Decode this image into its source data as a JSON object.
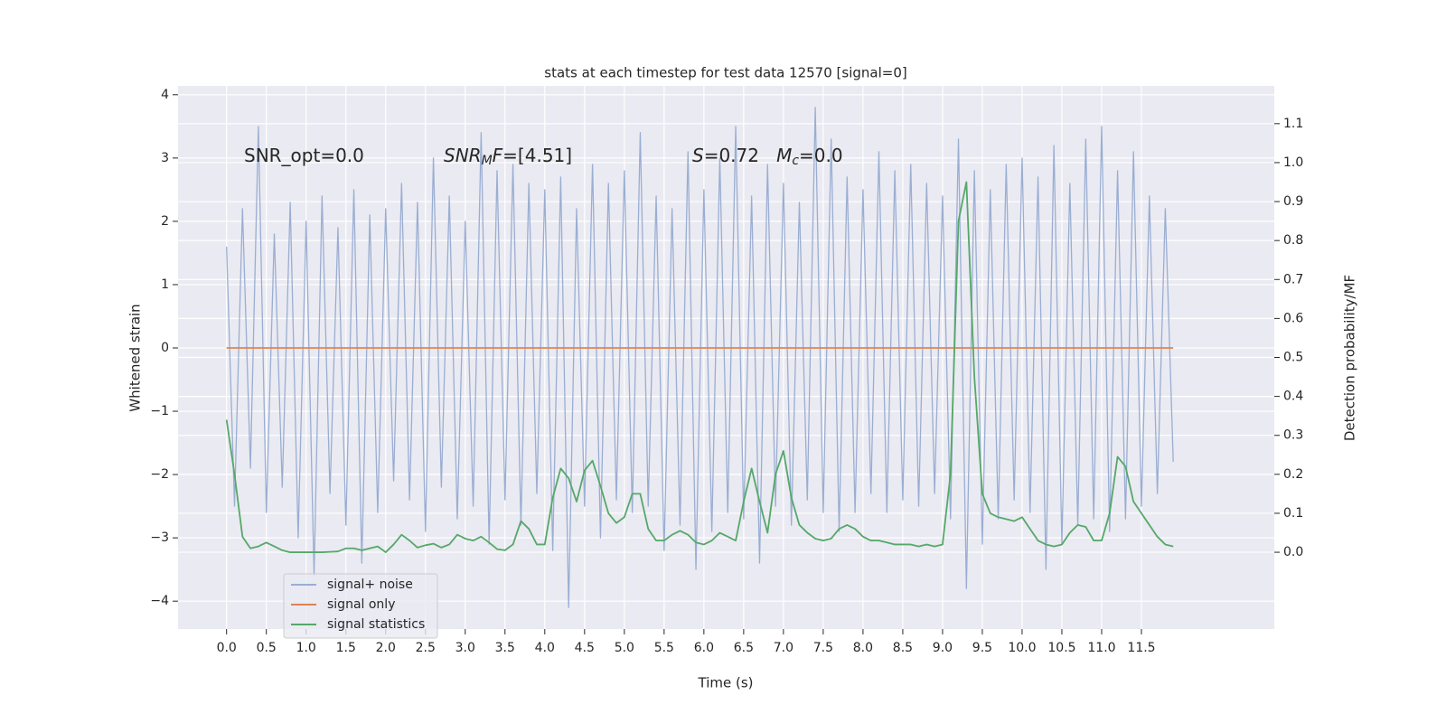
{
  "chart_data": {
    "type": "line",
    "title": "stats at each timestep for test data 12570 [signal=0]",
    "xlabel": "Time (s)",
    "ylabel": "Whitened strain",
    "y2label": "Detection probability/MF",
    "annotations": [
      [
        {
          "text": "SNR_opt=0.0",
          "style": "normal"
        }
      ],
      [
        {
          "text": "SNR",
          "style": "italic"
        },
        {
          "text": "M",
          "style": "sub-italic"
        },
        {
          "text": "F",
          "style": "italic"
        },
        {
          "text": "=[4.51]",
          "style": "normal"
        }
      ],
      [
        {
          "text": "S",
          "style": "italic"
        },
        {
          "text": "=0.72   ",
          "style": "normal"
        },
        {
          "text": "M",
          "style": "italic"
        },
        {
          "text": "c",
          "style": "sub-italic"
        },
        {
          "text": "=0.0",
          "style": "normal"
        }
      ]
    ],
    "x": [
      0,
      0.1,
      0.2,
      0.3,
      0.4,
      0.5,
      0.6,
      0.7,
      0.8,
      0.9,
      1,
      1.1,
      1.2,
      1.3,
      1.4,
      1.5,
      1.6,
      1.7,
      1.8,
      1.9,
      2,
      2.1,
      2.2,
      2.3,
      2.4,
      2.5,
      2.6,
      2.7,
      2.8,
      2.9,
      3,
      3.1,
      3.2,
      3.3,
      3.4,
      3.5,
      3.6,
      3.7,
      3.8,
      3.9,
      4,
      4.1,
      4.2,
      4.3,
      4.4,
      4.5,
      4.6,
      4.7,
      4.8,
      4.9,
      5,
      5.1,
      5.2,
      5.3,
      5.4,
      5.5,
      5.6,
      5.7,
      5.8,
      5.9,
      6,
      6.1,
      6.2,
      6.3,
      6.4,
      6.5,
      6.6,
      6.7,
      6.8,
      6.9,
      7,
      7.1,
      7.2,
      7.3,
      7.4,
      7.5,
      7.6,
      7.7,
      7.8,
      7.9,
      8,
      8.1,
      8.2,
      8.3,
      8.4,
      8.5,
      8.6,
      8.7,
      8.8,
      8.9,
      9,
      9.1,
      9.2,
      9.3,
      9.4,
      9.5,
      9.6,
      9.7,
      9.8,
      9.9,
      10,
      10.1,
      10.2,
      10.3,
      10.4,
      10.5,
      10.6,
      10.7,
      10.8,
      10.9,
      11,
      11.1,
      11.2,
      11.3,
      11.4,
      11.5,
      11.6,
      11.7,
      11.8,
      11.9
    ],
    "series": [
      {
        "name": "signal+ noise",
        "color": "#9aaed2",
        "values": [
          1.6,
          -2.5,
          2.2,
          -1.9,
          3.5,
          -2.6,
          1.8,
          -2.2,
          2.3,
          -3.0,
          2.0,
          -3.6,
          2.4,
          -2.3,
          1.9,
          -2.8,
          2.5,
          -3.4,
          2.1,
          -2.6,
          2.2,
          -2.1,
          2.6,
          -2.4,
          2.3,
          -2.9,
          3.0,
          -2.2,
          2.4,
          -2.7,
          2.0,
          -2.5,
          3.4,
          -3.1,
          2.8,
          -2.4,
          2.9,
          -2.8,
          2.6,
          -2.3,
          2.5,
          -3.2,
          2.7,
          -4.1,
          2.2,
          -2.5,
          2.9,
          -3.0,
          2.6,
          -2.4,
          2.8,
          -2.6,
          3.4,
          -2.5,
          2.4,
          -3.2,
          2.2,
          -2.8,
          3.1,
          -3.5,
          2.5,
          -2.9,
          3.0,
          -2.6,
          3.5,
          -2.7,
          2.4,
          -3.4,
          2.9,
          -2.5,
          2.6,
          -2.8,
          2.3,
          -2.4,
          3.8,
          -2.6,
          3.3,
          -2.9,
          2.7,
          -2.6,
          2.5,
          -2.3,
          3.1,
          -2.6,
          2.8,
          -2.4,
          2.9,
          -2.5,
          2.6,
          -2.3,
          2.4,
          -2.7,
          3.3,
          -3.8,
          2.8,
          -3.1,
          2.5,
          -2.7,
          2.9,
          -2.4,
          3.0,
          -2.6,
          2.7,
          -3.5,
          3.2,
          -3.1,
          2.6,
          -2.8,
          3.3,
          -2.7,
          3.5,
          -2.9,
          2.8,
          -2.7,
          3.1,
          -2.5,
          2.4,
          -2.3,
          2.2,
          -1.8
        ]
      },
      {
        "name": "signal only",
        "color": "#dd8452",
        "values": [
          0,
          0,
          0,
          0,
          0,
          0,
          0,
          0,
          0,
          0,
          0,
          0,
          0,
          0,
          0,
          0,
          0,
          0,
          0,
          0,
          0,
          0,
          0,
          0,
          0,
          0,
          0,
          0,
          0,
          0,
          0,
          0,
          0,
          0,
          0,
          0,
          0,
          0,
          0,
          0,
          0,
          0,
          0,
          0,
          0,
          0,
          0,
          0,
          0,
          0,
          0,
          0,
          0,
          0,
          0,
          0,
          0,
          0,
          0,
          0,
          0,
          0,
          0,
          0,
          0,
          0,
          0,
          0,
          0,
          0,
          0,
          0,
          0,
          0,
          0,
          0,
          0,
          0,
          0,
          0,
          0,
          0,
          0,
          0,
          0,
          0,
          0,
          0,
          0,
          0,
          0,
          0,
          0,
          0,
          0,
          0,
          0,
          0,
          0,
          0,
          0,
          0,
          0,
          0,
          0,
          0,
          0,
          0,
          0,
          0,
          0,
          0,
          0,
          0,
          0,
          0,
          0,
          0,
          0,
          0
        ]
      },
      {
        "name": "signal statistics",
        "color": "#55a868",
        "axis": "y2",
        "values": [
          0.34,
          0.2,
          0.04,
          0.01,
          0.015,
          0.025,
          0.015,
          0.005,
          0,
          0,
          0,
          0,
          0,
          0.001,
          0.002,
          0.01,
          0.01,
          0.005,
          0.01,
          0.015,
          0,
          0.02,
          0.045,
          0.03,
          0.012,
          0.018,
          0.022,
          0.012,
          0.02,
          0.045,
          0.035,
          0.03,
          0.04,
          0.025,
          0.008,
          0.005,
          0.02,
          0.08,
          0.06,
          0.02,
          0.02,
          0.14,
          0.215,
          0.19,
          0.13,
          0.21,
          0.235,
          0.17,
          0.1,
          0.075,
          0.09,
          0.15,
          0.15,
          0.06,
          0.03,
          0.03,
          0.045,
          0.055,
          0.045,
          0.025,
          0.02,
          0.03,
          0.05,
          0.04,
          0.03,
          0.13,
          0.215,
          0.13,
          0.05,
          0.2,
          0.26,
          0.14,
          0.07,
          0.05,
          0.035,
          0.03,
          0.035,
          0.06,
          0.07,
          0.06,
          0.04,
          0.03,
          0.03,
          0.025,
          0.02,
          0.02,
          0.02,
          0.015,
          0.02,
          0.015,
          0.02,
          0.2,
          0.85,
          0.95,
          0.45,
          0.15,
          0.1,
          0.09,
          0.085,
          0.08,
          0.09,
          0.06,
          0.03,
          0.02,
          0.015,
          0.02,
          0.05,
          0.07,
          0.065,
          0.03,
          0.03,
          0.1,
          0.245,
          0.22,
          0.13,
          0.1,
          0.07,
          0.04,
          0.02,
          0.015
        ]
      }
    ],
    "xlim": [
      -0.61,
      13.17
    ],
    "xticks": [
      {
        "value": 0,
        "label": "0.0"
      },
      0.5,
      {
        "value": 1,
        "label": "1.0"
      },
      1.5,
      {
        "value": 2,
        "label": "2.0"
      },
      2.5,
      {
        "value": 3,
        "label": "3.0"
      },
      3.5,
      {
        "value": 4,
        "label": "4.0"
      },
      4.5,
      {
        "value": 5,
        "label": "5.0"
      },
      5.5,
      {
        "value": 6,
        "label": "6.0"
      },
      6.5,
      {
        "value": 7,
        "label": "7.0"
      },
      7.5,
      {
        "value": 8,
        "label": "8.0"
      },
      8.5,
      {
        "value": 9,
        "label": "9.0"
      },
      9.5,
      {
        "value": 10,
        "label": "10.0"
      },
      10.5,
      {
        "value": 11,
        "label": "11.0"
      },
      11.5
    ],
    "ylim": [
      -4.44,
      4.14
    ],
    "yticks": [
      {
        "value": -4,
        "label": "−4"
      },
      {
        "value": -3,
        "label": "−3"
      },
      {
        "value": -2,
        "label": "−2"
      },
      {
        "value": -1,
        "label": "−1"
      },
      0,
      1,
      2,
      3,
      4
    ],
    "y2lim": [
      -0.197,
      1.197
    ],
    "y2ticks": [
      {
        "value": 0,
        "label": "0.0"
      },
      0.1,
      0.2,
      0.3,
      0.4,
      0.5,
      0.6,
      0.7,
      0.8,
      0.9,
      {
        "value": 1,
        "label": "1.0"
      },
      1.1
    ],
    "grid": true,
    "legend": "lower left",
    "background": "#eaeaf2"
  }
}
